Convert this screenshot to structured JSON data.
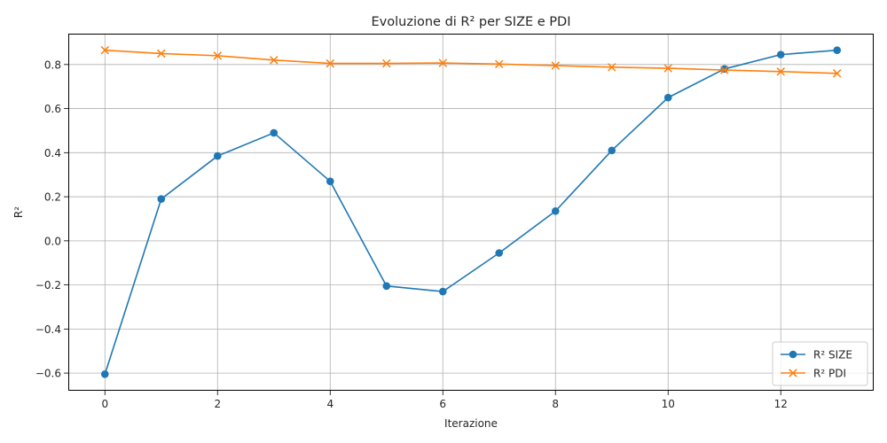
{
  "chart_data": {
    "type": "line",
    "title": "Evoluzione di R² per SIZE e PDI",
    "xlabel": "Iterazione",
    "ylabel": "R²",
    "x": [
      0,
      1,
      2,
      3,
      4,
      5,
      6,
      7,
      8,
      9,
      10,
      11,
      12,
      13
    ],
    "xlim": [
      -0.65,
      13.65
    ],
    "ylim": [
      -0.68,
      0.94
    ],
    "xticks": [
      0,
      2,
      4,
      6,
      8,
      10,
      12
    ],
    "yticks": [
      -0.6,
      -0.4,
      -0.2,
      0.0,
      0.2,
      0.4,
      0.6,
      0.8
    ],
    "xtick_labels": [
      "0",
      "2",
      "4",
      "6",
      "8",
      "10",
      "12"
    ],
    "ytick_labels": [
      "−0.6",
      "−0.4",
      "−0.2",
      "0.0",
      "0.2",
      "0.4",
      "0.6",
      "0.8"
    ],
    "grid": true,
    "legend_position": "lower-right",
    "series": [
      {
        "name": "R² SIZE",
        "color": "#1f77b4",
        "marker": "circle",
        "values": [
          -0.605,
          0.19,
          0.385,
          0.49,
          0.27,
          -0.205,
          -0.23,
          -0.055,
          0.135,
          0.41,
          0.65,
          0.78,
          0.845,
          0.865
        ]
      },
      {
        "name": "R² PDI",
        "color": "#ff7f0e",
        "marker": "x",
        "values": [
          0.865,
          0.85,
          0.84,
          0.82,
          0.805,
          0.805,
          0.807,
          0.802,
          0.795,
          0.788,
          0.783,
          0.775,
          0.768,
          0.76
        ]
      }
    ]
  }
}
